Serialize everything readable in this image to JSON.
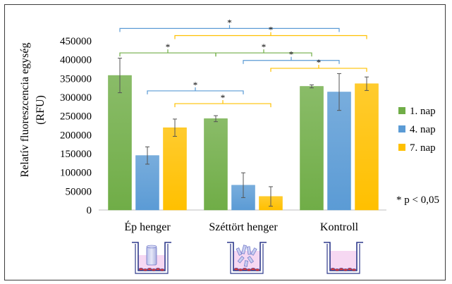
{
  "chart_data": {
    "type": "bar",
    "title": "",
    "ylabel": "Relatív fluoreszcencia egység (RFU)",
    "ylabel_lines": [
      "Relatív fluoreszcencia egység",
      "(RFU)"
    ],
    "xlabel": "",
    "ylim": [
      0,
      450000
    ],
    "yticks": [
      0,
      50000,
      100000,
      150000,
      200000,
      250000,
      300000,
      350000,
      400000,
      450000
    ],
    "ytick_labels": [
      "0",
      "50000",
      "100000",
      "150000",
      "200000",
      "250000",
      "300000",
      "350000",
      "400000",
      "450000"
    ],
    "categories": [
      "Ép henger",
      "Széttört henger",
      "Kontroll"
    ],
    "series": [
      {
        "name": "1. nap",
        "color": "#70ad47",
        "values": [
          358000,
          243000,
          329000
        ],
        "errors": [
          46000,
          8000,
          4000
        ]
      },
      {
        "name": "4. nap",
        "color": "#5b9bd5",
        "values": [
          145000,
          66000,
          314000
        ],
        "errors": [
          23000,
          33000,
          49000
        ]
      },
      {
        "name": "7. nap",
        "color": "#ffc000",
        "values": [
          219000,
          36000,
          336000
        ],
        "errors": [
          23000,
          26000,
          18000
        ]
      }
    ],
    "legend_position": "right",
    "grid": false,
    "annotation": "* p < 0,05",
    "significance_brackets": [
      {
        "from": [
          0,
          0
        ],
        "to": [
          2,
          1
        ],
        "level": 483000,
        "color": "#5b9bd5",
        "label": "*"
      },
      {
        "from": [
          0,
          2
        ],
        "to": [
          2,
          2
        ],
        "level": 464000,
        "color": "#ffc000",
        "label": "*"
      },
      {
        "from": [
          0,
          0
        ],
        "to": [
          1,
          0
        ],
        "level": 418000,
        "color": "#70ad47",
        "label": "*"
      },
      {
        "from": [
          1,
          0
        ],
        "to": [
          2,
          0
        ],
        "level": 418000,
        "color": "#70ad47",
        "label": "*"
      },
      {
        "from": [
          1,
          1
        ],
        "to": [
          2,
          1
        ],
        "level": 398000,
        "color": "#5b9bd5",
        "label": "*"
      },
      {
        "from": [
          1,
          2
        ],
        "to": [
          2,
          2
        ],
        "level": 377000,
        "color": "#ffc000",
        "label": "*"
      },
      {
        "from": [
          0,
          1
        ],
        "to": [
          1,
          1
        ],
        "level": 317000,
        "color": "#5b9bd5",
        "label": "*"
      },
      {
        "from": [
          0,
          2
        ],
        "to": [
          1,
          2
        ],
        "level": 283000,
        "color": "#ffc000",
        "label": "*"
      }
    ]
  },
  "icons": {
    "well_intact": "intact-cylinder-well-icon",
    "well_broken": "broken-cylinder-well-icon",
    "well_control": "control-well-icon"
  }
}
